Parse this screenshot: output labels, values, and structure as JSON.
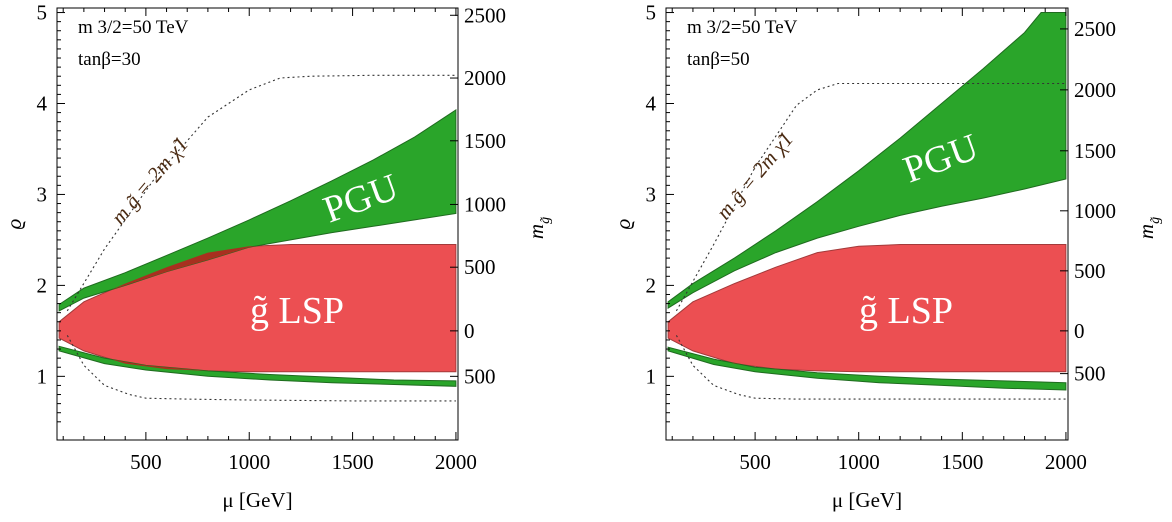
{
  "colors": {
    "pgu_fill": "#2aa52a",
    "pgu_stroke": "#1f6b1f",
    "lsp_fill": "#ec4f52",
    "lsp_stroke": "#a33a3a",
    "overlap_fill": "#a8301f",
    "dotted_line": "#333333"
  },
  "chart_data": [
    {
      "type": "area",
      "xlabel": "μ [GeV]",
      "ylabel": "ϱ",
      "right_label": "m_g̃",
      "xlim": [
        70,
        2010
      ],
      "ylim": [
        0.3,
        5.05
      ],
      "xticks": [
        "500",
        "1000",
        "1500",
        "2000"
      ],
      "yticks": [
        "1",
        "2",
        "3",
        "4",
        "5"
      ],
      "right_ticks": [
        {
          "label": "2500",
          "rho": 4.97
        },
        {
          "label": "2000",
          "rho": 4.28
        },
        {
          "label": "1500",
          "rho": 3.59
        },
        {
          "label": "1000",
          "rho": 2.89
        },
        {
          "label": "500",
          "rho": 2.2
        },
        {
          "label": "0",
          "rho": 1.5
        },
        {
          "label": "500",
          "rho": 1.0
        }
      ],
      "annotations": [
        "m 3/2=50 TeV",
        "tanβ=30"
      ],
      "labels": {
        "pgu": "PGU",
        "lsp": "g̃ LSP",
        "line": "m g̃ = 2m χ̃1"
      },
      "series": [
        {
          "name": "PGU",
          "upper": {
            "x": [
              80,
              200,
              400,
              600,
              800,
              1000,
              1200,
              1400,
              1600,
              1800,
              2000
            ],
            "y": [
              1.79,
              1.97,
              2.14,
              2.33,
              2.52,
              2.72,
              2.93,
              3.15,
              3.38,
              3.63,
              3.93
            ]
          },
          "lower": {
            "x": [
              80,
              200,
              400,
              600,
              800,
              1000,
              1200,
              1400,
              1600,
              1800,
              2000
            ],
            "y": [
              1.72,
              1.86,
              2.0,
              2.15,
              2.28,
              2.42,
              2.5,
              2.58,
              2.65,
              2.72,
              2.79
            ]
          }
        },
        {
          "name": "PGU lower branch",
          "upper": {
            "x": [
              80,
              300,
              500,
              800,
              1100,
              1400,
              1700,
              2000
            ],
            "y": [
              1.33,
              1.2,
              1.12,
              1.06,
              1.02,
              0.99,
              0.96,
              0.95
            ]
          },
          "lower": {
            "x": [
              80,
              300,
              500,
              800,
              1100,
              1400,
              1700,
              2000
            ],
            "y": [
              1.28,
              1.14,
              1.07,
              1.0,
              0.96,
              0.93,
              0.91,
              0.89
            ]
          }
        },
        {
          "name": "gluino LSP",
          "upper": {
            "x": [
              80,
              200,
              400,
              600,
              800,
              1000,
              1200,
              1400,
              1600,
              2000
            ],
            "y": [
              1.6,
              1.82,
              2.02,
              2.2,
              2.36,
              2.43,
              2.45,
              2.45,
              2.45,
              2.45
            ]
          },
          "lower": {
            "x": [
              80,
              200,
              400,
              600,
              800,
              1000,
              1200,
              1400,
              1600,
              2000
            ],
            "y": [
              1.42,
              1.28,
              1.14,
              1.08,
              1.06,
              1.05,
              1.05,
              1.05,
              1.05,
              1.05
            ]
          }
        },
        {
          "name": "m_g̃ = 2 m_χ̃1",
          "upper": {
            "x": [
              120,
              300,
              550,
              800,
              1000,
              1150,
              1300,
              1600,
              1900,
              2000
            ],
            "y": [
              1.72,
              2.4,
              3.2,
              3.85,
              4.15,
              4.28,
              4.3,
              4.31,
              4.31,
              4.31
            ]
          },
          "lower": {
            "x": [
              120,
              200,
              300,
              420,
              500,
              700,
              1000,
              1500,
              2000
            ],
            "y": [
              1.45,
              1.12,
              0.9,
              0.8,
              0.76,
              0.75,
              0.74,
              0.73,
              0.73
            ]
          }
        }
      ]
    },
    {
      "type": "area",
      "xlabel": "μ [GeV]",
      "ylabel": "ϱ",
      "right_label": "m_g̃",
      "xlim": [
        70,
        2010
      ],
      "ylim": [
        0.3,
        5.05
      ],
      "xticks": [
        "500",
        "1000",
        "1500",
        "2000"
      ],
      "yticks": [
        "1",
        "2",
        "3",
        "4",
        "5"
      ],
      "right_ticks": [
        {
          "label": "2500",
          "rho": 4.82
        },
        {
          "label": "2000",
          "rho": 4.15
        },
        {
          "label": "1500",
          "rho": 3.48
        },
        {
          "label": "1000",
          "rho": 2.82
        },
        {
          "label": "500",
          "rho": 2.16
        },
        {
          "label": "0",
          "rho": 1.5
        },
        {
          "label": "500",
          "rho": 1.03
        }
      ],
      "annotations": [
        "m 3/2=50 TeV",
        "tanβ=50"
      ],
      "labels": {
        "pgu": "PGU",
        "lsp": "g̃ LSP",
        "line": "m g̃ = 2m χ̃1"
      },
      "series": [
        {
          "name": "PGU",
          "upper": {
            "x": [
              80,
              200,
              400,
              600,
              800,
              1000,
              1200,
              1400,
              1600,
              1800,
              1880,
              2000
            ],
            "y": [
              1.82,
              2.02,
              2.3,
              2.6,
              2.92,
              3.26,
              3.62,
              4.0,
              4.38,
              4.78,
              5.0,
              5.0
            ]
          },
          "lower": {
            "x": [
              80,
              200,
              400,
              600,
              800,
              1000,
              1200,
              1400,
              1600,
              1800,
              2000
            ],
            "y": [
              1.75,
              1.92,
              2.16,
              2.36,
              2.52,
              2.65,
              2.77,
              2.87,
              2.96,
              3.06,
              3.17
            ]
          }
        },
        {
          "name": "PGU lower branch",
          "upper": {
            "x": [
              80,
              300,
              500,
              800,
              1100,
              1400,
              1700,
              2000
            ],
            "y": [
              1.32,
              1.19,
              1.1,
              1.04,
              1.0,
              0.97,
              0.95,
              0.93
            ]
          },
          "lower": {
            "x": [
              80,
              300,
              500,
              800,
              1100,
              1400,
              1700,
              2000
            ],
            "y": [
              1.28,
              1.13,
              1.05,
              0.98,
              0.93,
              0.9,
              0.87,
              0.85
            ]
          }
        },
        {
          "name": "gluino LSP",
          "upper": {
            "x": [
              80,
              200,
              400,
              600,
              800,
              1000,
              1200,
              1400,
              1600,
              2000
            ],
            "y": [
              1.6,
              1.82,
              2.02,
              2.2,
              2.36,
              2.43,
              2.45,
              2.45,
              2.45,
              2.45
            ]
          },
          "lower": {
            "x": [
              80,
              200,
              400,
              600,
              800,
              1000,
              1200,
              1400,
              1600,
              2000
            ],
            "y": [
              1.42,
              1.28,
              1.14,
              1.08,
              1.06,
              1.05,
              1.05,
              1.05,
              1.05,
              1.05
            ]
          }
        },
        {
          "name": "m_g̃ = 2 m_χ̃1",
          "upper": {
            "x": [
              120,
              300,
              500,
              700,
              800,
              900,
              1100,
              1500,
              2000
            ],
            "y": [
              1.72,
              2.45,
              3.3,
              3.98,
              4.15,
              4.22,
              4.22,
              4.22,
              4.22
            ]
          },
          "lower": {
            "x": [
              120,
              200,
              300,
              420,
              500,
              700,
              1000,
              1500,
              2000
            ],
            "y": [
              1.45,
              1.12,
              0.9,
              0.8,
              0.76,
              0.75,
              0.75,
              0.75,
              0.75
            ]
          }
        }
      ]
    }
  ]
}
